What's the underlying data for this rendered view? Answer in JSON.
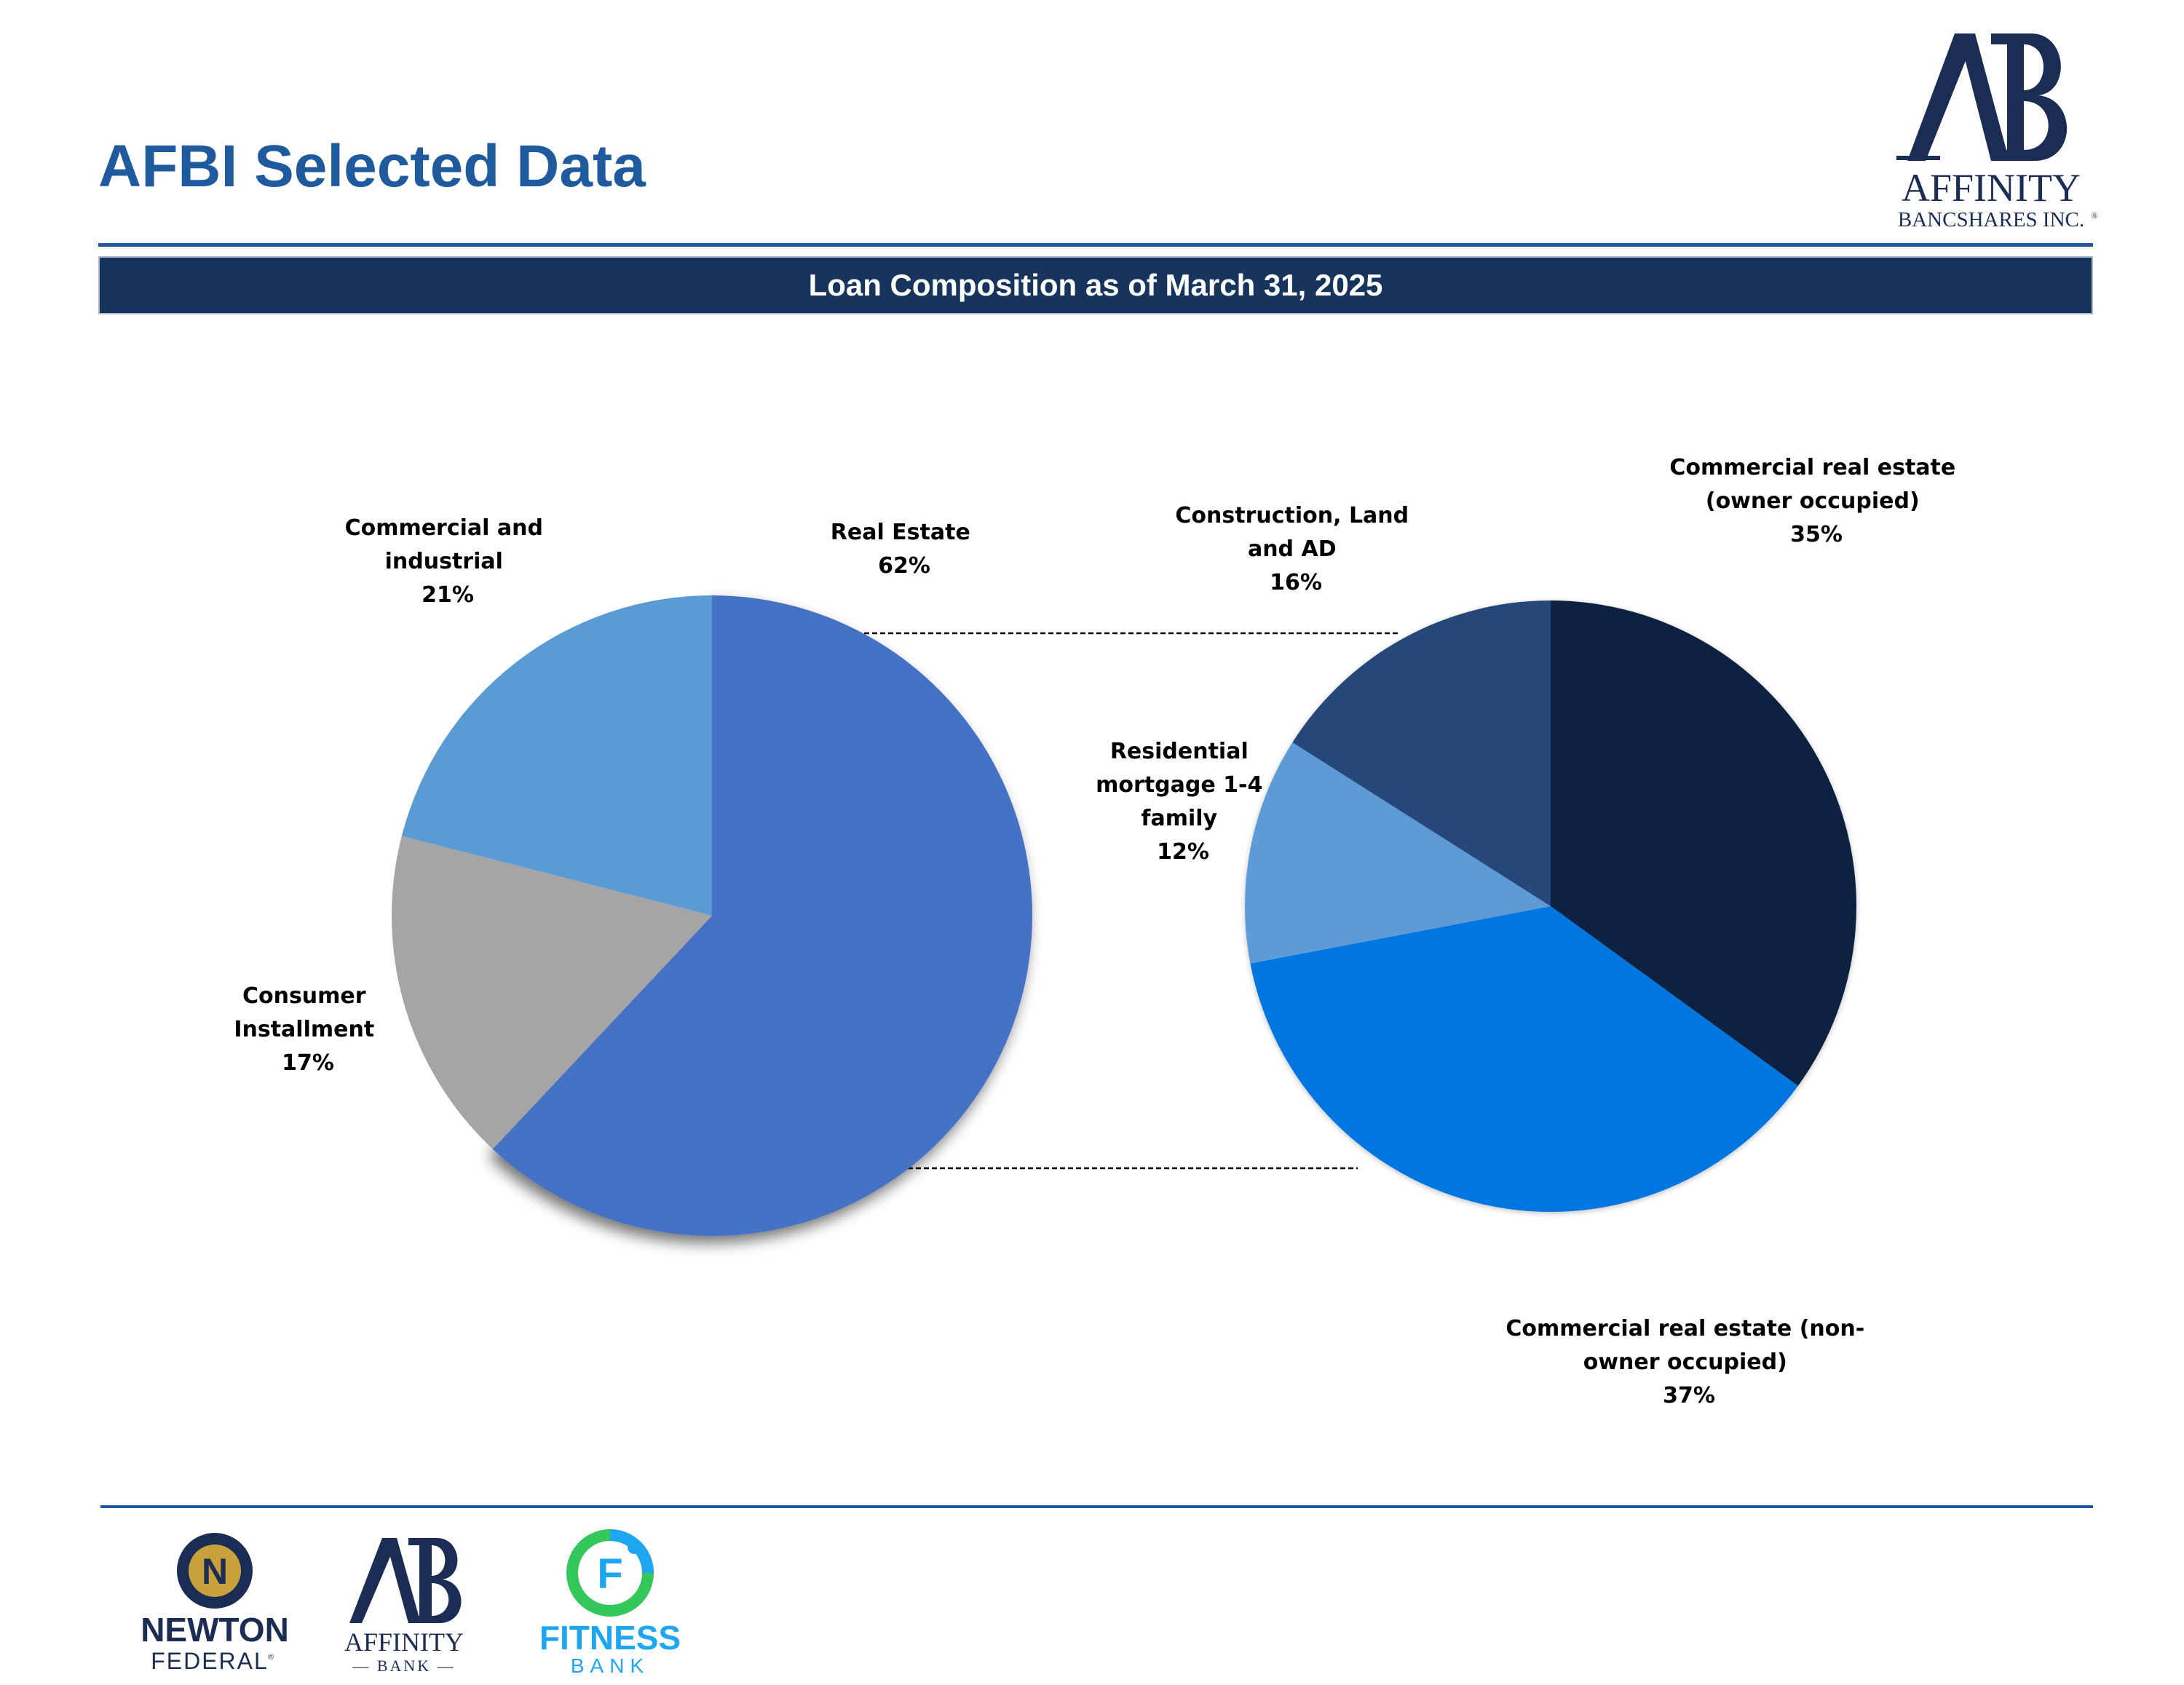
{
  "page": {
    "title": "AFBI Selected Data"
  },
  "banner": {
    "text": "Loan Composition as of March 31, 2025"
  },
  "logos": {
    "main": {
      "monogram": "AB",
      "name": "AFFINITY",
      "sub": "BANCSHARES INC.",
      "mark": "®"
    },
    "footer": [
      {
        "monogram": "N",
        "line1": "NEWTON",
        "line2": "FEDERAL",
        "mark": "®"
      },
      {
        "monogram": "AB",
        "line1": "AFFINITY",
        "line2": "— BANK —"
      },
      {
        "monogram": "F",
        "line1": "FITNESS",
        "line2": "BANK"
      }
    ]
  },
  "colors": {
    "title": "#1f5a9e",
    "banner": "#17355c",
    "rule": "#1f5a9e",
    "real_estate": "#4472c4",
    "commercial_industrial": "#5b9bd5",
    "consumer": "#a5a5a5",
    "cre_owner": "#10233f",
    "cre_non_owner": "#0277e0",
    "residential": "#5b9bd5",
    "construction": "#27467a"
  },
  "chart_data": [
    {
      "type": "pie",
      "title": "",
      "slices": [
        {
          "label": "Real Estate",
          "value": 62,
          "display": "62%",
          "color": "#4472c4",
          "exploded": true
        },
        {
          "label": "Consumer Installment",
          "value": 17,
          "display": "17%",
          "color": "#a5a5a5"
        },
        {
          "label": "Commercial and industrial",
          "value": 21,
          "display": "21%",
          "color": "#5b9bd5"
        }
      ]
    },
    {
      "type": "pie",
      "title": "",
      "breakdown_of": "Real Estate",
      "slices": [
        {
          "label": "Commercial real estate (owner occupied)",
          "value": 35,
          "display": "35%",
          "color": "#10233f"
        },
        {
          "label": "Commercial  real estate (non-owner occupied)",
          "value": 37,
          "display": "37%",
          "color": "#0277e0"
        },
        {
          "label": "Residential mortgage 1-4 family",
          "value": 12,
          "display": "12%",
          "color": "#5b9bd5"
        },
        {
          "label": "Construction, Land and AD",
          "value": 16,
          "display": "16%",
          "color": "#27467a"
        }
      ]
    }
  ],
  "labels": {
    "left": {
      "ci": [
        "Commercial and",
        "industrial",
        "21%"
      ],
      "re": [
        "Real Estate",
        "62%"
      ],
      "consumer": [
        "Consumer",
        "Installment",
        "17%"
      ]
    },
    "right": {
      "construction": [
        "Construction, Land",
        "and AD",
        "16%"
      ],
      "cre_owner": [
        "Commercial real estate",
        "(owner occupied)",
        "35%"
      ],
      "residential": [
        "Residential",
        "mortgage 1-4",
        "family",
        "12%"
      ],
      "cre_non_owner": [
        "Commercial  real estate (non-",
        "owner occupied)",
        "37%"
      ]
    }
  }
}
